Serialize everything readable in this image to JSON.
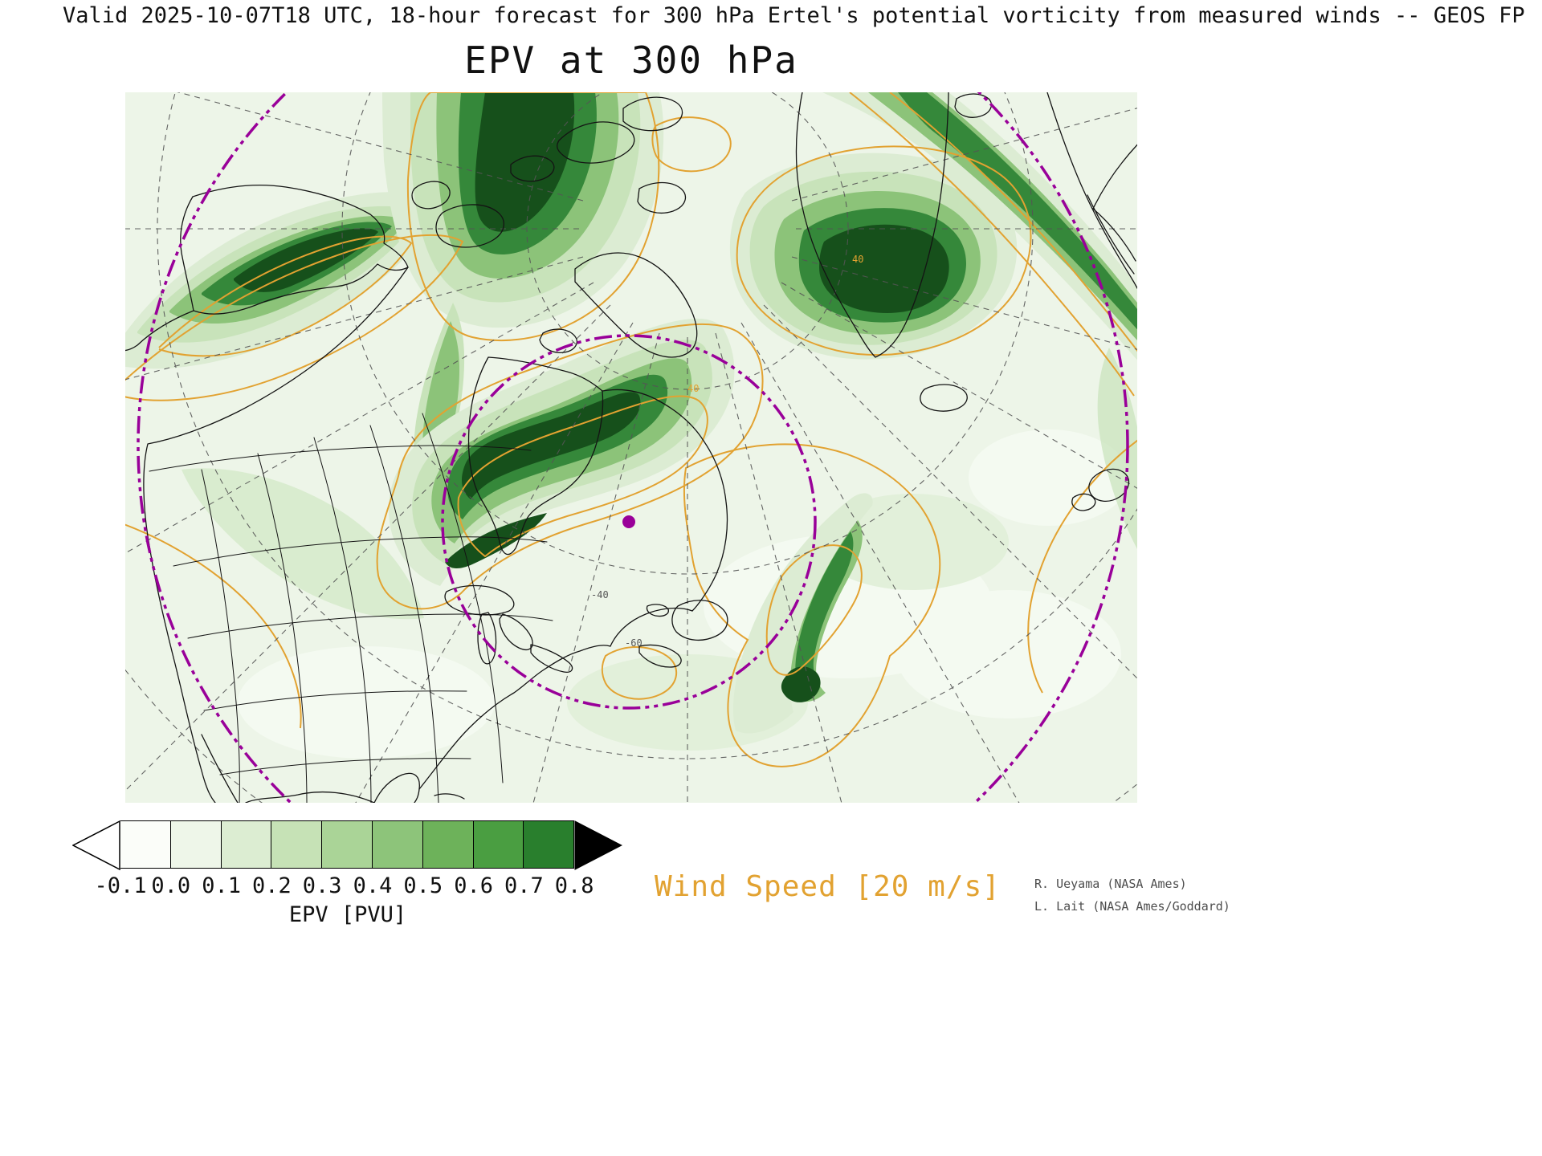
{
  "header": {
    "line": "Valid 2025-10-07T18 UTC, 18-hour forecast for 300 hPa Ertel's potential vorticity from measured winds -- GEOS FP"
  },
  "title": "EPV at 300 hPa",
  "map": {
    "contour_labels": {
      "wind_a": "40",
      "wind_b": "40",
      "grid_a": "-60",
      "grid_b": "-40"
    },
    "colors": {
      "wind_contour": "#e2a231",
      "range_rings": "#990099",
      "coastline": "#141414",
      "graticule": "#555555",
      "field_background": "#edf5e8",
      "field_dark_core": "#16501b"
    }
  },
  "colorbar": {
    "labels": [
      "-0.1",
      "0.0",
      "0.1",
      "0.2",
      "0.3",
      "0.4",
      "0.5",
      "0.6",
      "0.7",
      "0.8"
    ],
    "cell_colors": [
      "#fbfdf9",
      "#eef6e9",
      "#dcedd2",
      "#c6e2b6",
      "#aad497",
      "#8dc47a",
      "#6db25a",
      "#4a9e41",
      "#297f2d"
    ],
    "under_arrow_color": "#ffffff",
    "over_arrow_color": "#000000",
    "axis_label": "EPV [PVU]"
  },
  "wind_speed_label": "Wind Speed [20 m/s]",
  "credits": {
    "line1": "R. Ueyama (NASA Ames)",
    "line2": "L. Lait (NASA Ames/Goddard)"
  }
}
